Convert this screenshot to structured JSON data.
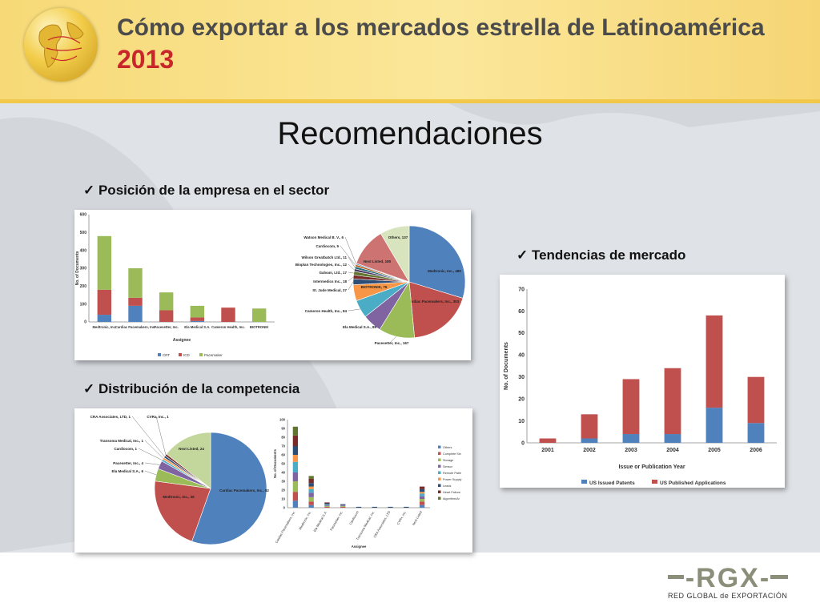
{
  "header": {
    "title": "Cómo exportar a los mercados estrella de Latinoamérica",
    "year": "2013"
  },
  "slide": {
    "heading": "Recomendaciones",
    "bullets": {
      "position": "Posición de la empresa en el sector",
      "trends": "Tendencias de mercado",
      "competition": "Distribución de la competencia"
    }
  },
  "colors": {
    "blue": "#4f81bd",
    "red": "#c0504d",
    "green": "#9bbb59",
    "purple": "#8064a2",
    "teal": "#4bacc6",
    "orange": "#f79646",
    "accent": "#c8262b"
  },
  "chart_data": [
    {
      "type": "bar",
      "subtype": "stacked",
      "categories": [
        "Medtronic, Inc.",
        "Cardiac Pacemakers, Inc.",
        "Pacesetter, Inc.",
        "Ela Medical S.A.",
        "Cameron Health, Inc.",
        "BIOTRONIK"
      ],
      "series": [
        {
          "name": "CRT",
          "values": [
            40,
            90,
            0,
            5,
            0,
            0
          ]
        },
        {
          "name": "ICD",
          "values": [
            140,
            45,
            65,
            20,
            80,
            0
          ]
        },
        {
          "name": "Pacemaker",
          "values": [
            300,
            165,
            100,
            65,
            0,
            75
          ]
        }
      ],
      "ylabel": "No. of Documents",
      "xlabel": "Assignee",
      "ylim": [
        0,
        600
      ],
      "yticks": [
        0,
        100,
        200,
        300,
        400,
        500,
        600
      ]
    },
    {
      "type": "pie",
      "labels": [
        "Medtronic, Inc., 480",
        "Cardiac Pacemakers, Inc., 303",
        "Pacesetter, Inc., 167",
        "Ela Medical S.A., 89",
        "Cameron Health, Inc., 84",
        "BIOTRONIK, 75",
        "St. Jude Medical, 27",
        "Intermedics Inc., 18",
        "Galvani, Ltd., 17",
        "Bioplan Technologies, Inc., 12",
        "Wilson Greatbatch Ltd., 11",
        "Cardiocom, 9",
        "Watson Medical B. V., 6",
        "Next Listed, 180",
        "Others, 137"
      ],
      "values": [
        480,
        303,
        167,
        89,
        84,
        75,
        27,
        18,
        17,
        12,
        11,
        9,
        6,
        180,
        137
      ]
    },
    {
      "type": "pie",
      "labels": [
        "Cardiac Pacemakers, Inc., 92",
        "Medtronic, Inc., 36",
        "Ela Medical S.A., 6",
        "Pacesetter, Inc., 4",
        "Cardiocom, 1",
        "Transoma Medical, Inc., 1",
        "CRA Associates, LTD, 1",
        "CVRx, Inc., 1",
        "Next Listed, 24"
      ],
      "values": [
        92,
        36,
        6,
        4,
        1,
        1,
        1,
        1,
        24
      ]
    },
    {
      "type": "bar",
      "subtype": "stacked",
      "categories": [
        "Cardiac Pacemakers, Inc.",
        "Medtronic, Inc.",
        "Ela Medical S.A.",
        "Pacesetter, Inc.",
        "Cardiocom",
        "Transoma Medical, Inc.",
        "CRA Associates, LTD",
        "CVRx, Inc.",
        "Next Listed"
      ],
      "series": [
        {
          "name": "Others",
          "values": [
            8,
            3,
            0,
            0,
            0,
            0,
            0,
            0,
            3
          ]
        },
        {
          "name": "Complete Sin",
          "values": [
            10,
            4,
            1,
            1,
            0,
            0,
            0,
            0,
            4
          ]
        },
        {
          "name": "Storage",
          "values": [
            12,
            5,
            1,
            1,
            0,
            0,
            0,
            0,
            3
          ]
        },
        {
          "name": "Sensor",
          "values": [
            10,
            5,
            1,
            1,
            0,
            0,
            0,
            0,
            3
          ]
        },
        {
          "name": "Remote Patie",
          "values": [
            12,
            4,
            1,
            0,
            0,
            0,
            0,
            0,
            3
          ]
        },
        {
          "name": "Power Supply",
          "values": [
            8,
            3,
            0,
            0,
            0,
            0,
            0,
            0,
            2
          ]
        },
        {
          "name": "Leads",
          "values": [
            10,
            4,
            1,
            1,
            1,
            1,
            1,
            1,
            3
          ]
        },
        {
          "name": "Heart Failure",
          "values": [
            12,
            5,
            1,
            0,
            0,
            0,
            0,
            0,
            3
          ]
        },
        {
          "name": "Algorithm/Ar",
          "values": [
            10,
            3,
            0,
            0,
            0,
            0,
            0,
            0,
            0
          ]
        }
      ],
      "ylabel": "No. of Documents",
      "xlabel": "Assignee",
      "ylim": [
        0,
        100
      ],
      "yticks": [
        0,
        10,
        20,
        30,
        40,
        50,
        60,
        70,
        80,
        90,
        100
      ]
    },
    {
      "type": "bar",
      "subtype": "stacked",
      "categories": [
        "2001",
        "2002",
        "2003",
        "2004",
        "2005",
        "2006"
      ],
      "series": [
        {
          "name": "US Issued Patents",
          "values": [
            0,
            2,
            4,
            4,
            16,
            9
          ]
        },
        {
          "name": "US Published Applications",
          "values": [
            2,
            11,
            25,
            30,
            42,
            21
          ]
        }
      ],
      "ylabel": "No. of Documents",
      "xlabel": "Issue or Publication Year",
      "ylim": [
        0,
        70
      ],
      "yticks": [
        0,
        10,
        20,
        30,
        40,
        50,
        60,
        70
      ]
    }
  ],
  "logo": {
    "text": "-RGX-",
    "subtitle": "RED GLOBAL de EXPORTACIÓN"
  }
}
